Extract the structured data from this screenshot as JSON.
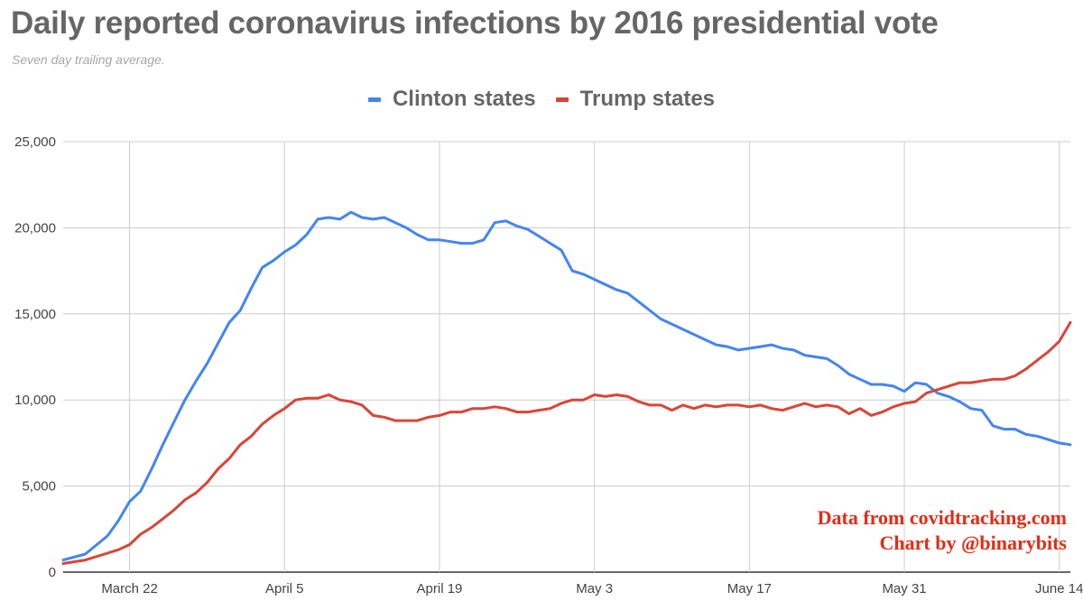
{
  "colors": {
    "clinton": "#4285f4",
    "trump": "#db4437",
    "grid": "#cccccc",
    "credit": "#e52b14"
  },
  "credit": {
    "line1": "Data from covidtracking.com",
    "line2": "Chart by @binarybits"
  },
  "chart_data": {
    "type": "line",
    "title": "Daily reported coronavirus infections by 2016 presidential vote",
    "subtitle": "Seven day trailing average.",
    "legend_position": "top-center",
    "grid": true,
    "x_start_date": "2020-03-16",
    "x_end_date": "2020-06-15",
    "ylim": [
      0,
      25000
    ],
    "yticks": [
      0,
      5000,
      10000,
      15000,
      20000,
      25000
    ],
    "ytick_labels": [
      "0",
      "5,000",
      "10,000",
      "15,000",
      "20,000",
      "25,000"
    ],
    "xticks": [
      "2020-03-22",
      "2020-04-05",
      "2020-04-19",
      "2020-05-03",
      "2020-05-17",
      "2020-05-31",
      "2020-06-14"
    ],
    "xtick_labels": [
      "March 22",
      "April 5",
      "April 19",
      "May 3",
      "May 17",
      "May 31",
      "June 14"
    ],
    "series": [
      {
        "name": "Clinton states",
        "color": "#4285f4",
        "points": [
          [
            "2020-03-16",
            700
          ],
          [
            "2020-03-18",
            1050
          ],
          [
            "2020-03-20",
            2100
          ],
          [
            "2020-03-21",
            3000
          ],
          [
            "2020-03-22",
            4100
          ],
          [
            "2020-03-23",
            4700
          ],
          [
            "2020-03-24",
            6000
          ],
          [
            "2020-03-25",
            7400
          ],
          [
            "2020-03-26",
            8700
          ],
          [
            "2020-03-27",
            10000
          ],
          [
            "2020-03-28",
            11100
          ],
          [
            "2020-03-29",
            12100
          ],
          [
            "2020-03-30",
            13300
          ],
          [
            "2020-03-31",
            14500
          ],
          [
            "2020-04-01",
            15200
          ],
          [
            "2020-04-02",
            16500
          ],
          [
            "2020-04-03",
            17700
          ],
          [
            "2020-04-04",
            18100
          ],
          [
            "2020-04-05",
            18600
          ],
          [
            "2020-04-06",
            19000
          ],
          [
            "2020-04-07",
            19600
          ],
          [
            "2020-04-08",
            20500
          ],
          [
            "2020-04-09",
            20600
          ],
          [
            "2020-04-10",
            20500
          ],
          [
            "2020-04-11",
            20900
          ],
          [
            "2020-04-12",
            20600
          ],
          [
            "2020-04-13",
            20500
          ],
          [
            "2020-04-14",
            20600
          ],
          [
            "2020-04-15",
            20300
          ],
          [
            "2020-04-16",
            20000
          ],
          [
            "2020-04-17",
            19600
          ],
          [
            "2020-04-18",
            19300
          ],
          [
            "2020-04-19",
            19300
          ],
          [
            "2020-04-20",
            19200
          ],
          [
            "2020-04-21",
            19100
          ],
          [
            "2020-04-22",
            19100
          ],
          [
            "2020-04-23",
            19300
          ],
          [
            "2020-04-24",
            20300
          ],
          [
            "2020-04-25",
            20400
          ],
          [
            "2020-04-26",
            20100
          ],
          [
            "2020-04-27",
            19900
          ],
          [
            "2020-04-28",
            19500
          ],
          [
            "2020-04-29",
            19100
          ],
          [
            "2020-04-30",
            18700
          ],
          [
            "2020-05-01",
            17500
          ],
          [
            "2020-05-02",
            17300
          ],
          [
            "2020-05-03",
            17000
          ],
          [
            "2020-05-04",
            16700
          ],
          [
            "2020-05-05",
            16400
          ],
          [
            "2020-05-06",
            16200
          ],
          [
            "2020-05-07",
            15700
          ],
          [
            "2020-05-08",
            15200
          ],
          [
            "2020-05-09",
            14700
          ],
          [
            "2020-05-10",
            14400
          ],
          [
            "2020-05-11",
            14100
          ],
          [
            "2020-05-12",
            13800
          ],
          [
            "2020-05-13",
            13500
          ],
          [
            "2020-05-14",
            13200
          ],
          [
            "2020-05-15",
            13100
          ],
          [
            "2020-05-16",
            12900
          ],
          [
            "2020-05-17",
            13000
          ],
          [
            "2020-05-18",
            13100
          ],
          [
            "2020-05-19",
            13200
          ],
          [
            "2020-05-20",
            13000
          ],
          [
            "2020-05-21",
            12900
          ],
          [
            "2020-05-22",
            12600
          ],
          [
            "2020-05-23",
            12500
          ],
          [
            "2020-05-24",
            12400
          ],
          [
            "2020-05-25",
            12000
          ],
          [
            "2020-05-26",
            11500
          ],
          [
            "2020-05-27",
            11200
          ],
          [
            "2020-05-28",
            10900
          ],
          [
            "2020-05-29",
            10900
          ],
          [
            "2020-05-30",
            10800
          ],
          [
            "2020-05-31",
            10500
          ],
          [
            "2020-06-01",
            11000
          ],
          [
            "2020-06-02",
            10900
          ],
          [
            "2020-06-03",
            10400
          ],
          [
            "2020-06-04",
            10200
          ],
          [
            "2020-06-05",
            9900
          ],
          [
            "2020-06-06",
            9500
          ],
          [
            "2020-06-07",
            9400
          ],
          [
            "2020-06-08",
            8500
          ],
          [
            "2020-06-09",
            8300
          ],
          [
            "2020-06-10",
            8300
          ],
          [
            "2020-06-11",
            8000
          ],
          [
            "2020-06-12",
            7900
          ],
          [
            "2020-06-13",
            7700
          ],
          [
            "2020-06-14",
            7500
          ],
          [
            "2020-06-15",
            7400
          ]
        ]
      },
      {
        "name": "Trump states",
        "color": "#db4437",
        "points": [
          [
            "2020-03-16",
            500
          ],
          [
            "2020-03-18",
            700
          ],
          [
            "2020-03-20",
            1100
          ],
          [
            "2020-03-21",
            1300
          ],
          [
            "2020-03-22",
            1600
          ],
          [
            "2020-03-23",
            2200
          ],
          [
            "2020-03-24",
            2600
          ],
          [
            "2020-03-25",
            3100
          ],
          [
            "2020-03-26",
            3600
          ],
          [
            "2020-03-27",
            4200
          ],
          [
            "2020-03-28",
            4600
          ],
          [
            "2020-03-29",
            5200
          ],
          [
            "2020-03-30",
            6000
          ],
          [
            "2020-03-31",
            6600
          ],
          [
            "2020-04-01",
            7400
          ],
          [
            "2020-04-02",
            7900
          ],
          [
            "2020-04-03",
            8600
          ],
          [
            "2020-04-04",
            9100
          ],
          [
            "2020-04-05",
            9500
          ],
          [
            "2020-04-06",
            10000
          ],
          [
            "2020-04-07",
            10100
          ],
          [
            "2020-04-08",
            10100
          ],
          [
            "2020-04-09",
            10300
          ],
          [
            "2020-04-10",
            10000
          ],
          [
            "2020-04-11",
            9900
          ],
          [
            "2020-04-12",
            9700
          ],
          [
            "2020-04-13",
            9100
          ],
          [
            "2020-04-14",
            9000
          ],
          [
            "2020-04-15",
            8800
          ],
          [
            "2020-04-16",
            8800
          ],
          [
            "2020-04-17",
            8800
          ],
          [
            "2020-04-18",
            9000
          ],
          [
            "2020-04-19",
            9100
          ],
          [
            "2020-04-20",
            9300
          ],
          [
            "2020-04-21",
            9300
          ],
          [
            "2020-04-22",
            9500
          ],
          [
            "2020-04-23",
            9500
          ],
          [
            "2020-04-24",
            9600
          ],
          [
            "2020-04-25",
            9500
          ],
          [
            "2020-04-26",
            9300
          ],
          [
            "2020-04-27",
            9300
          ],
          [
            "2020-04-28",
            9400
          ],
          [
            "2020-04-29",
            9500
          ],
          [
            "2020-04-30",
            9800
          ],
          [
            "2020-05-01",
            10000
          ],
          [
            "2020-05-02",
            10000
          ],
          [
            "2020-05-03",
            10300
          ],
          [
            "2020-05-04",
            10200
          ],
          [
            "2020-05-05",
            10300
          ],
          [
            "2020-05-06",
            10200
          ],
          [
            "2020-05-07",
            9900
          ],
          [
            "2020-05-08",
            9700
          ],
          [
            "2020-05-09",
            9700
          ],
          [
            "2020-05-10",
            9400
          ],
          [
            "2020-05-11",
            9700
          ],
          [
            "2020-05-12",
            9500
          ],
          [
            "2020-05-13",
            9700
          ],
          [
            "2020-05-14",
            9600
          ],
          [
            "2020-05-15",
            9700
          ],
          [
            "2020-05-16",
            9700
          ],
          [
            "2020-05-17",
            9600
          ],
          [
            "2020-05-18",
            9700
          ],
          [
            "2020-05-19",
            9500
          ],
          [
            "2020-05-20",
            9400
          ],
          [
            "2020-05-21",
            9600
          ],
          [
            "2020-05-22",
            9800
          ],
          [
            "2020-05-23",
            9600
          ],
          [
            "2020-05-24",
            9700
          ],
          [
            "2020-05-25",
            9600
          ],
          [
            "2020-05-26",
            9200
          ],
          [
            "2020-05-27",
            9500
          ],
          [
            "2020-05-28",
            9100
          ],
          [
            "2020-05-29",
            9300
          ],
          [
            "2020-05-30",
            9600
          ],
          [
            "2020-05-31",
            9800
          ],
          [
            "2020-06-01",
            9900
          ],
          [
            "2020-06-02",
            10400
          ],
          [
            "2020-06-03",
            10600
          ],
          [
            "2020-06-04",
            10800
          ],
          [
            "2020-06-05",
            11000
          ],
          [
            "2020-06-06",
            11000
          ],
          [
            "2020-06-07",
            11100
          ],
          [
            "2020-06-08",
            11200
          ],
          [
            "2020-06-09",
            11200
          ],
          [
            "2020-06-10",
            11400
          ],
          [
            "2020-06-11",
            11800
          ],
          [
            "2020-06-12",
            12300
          ],
          [
            "2020-06-13",
            12800
          ],
          [
            "2020-06-14",
            13400
          ],
          [
            "2020-06-15",
            14500
          ]
        ]
      }
    ]
  }
}
